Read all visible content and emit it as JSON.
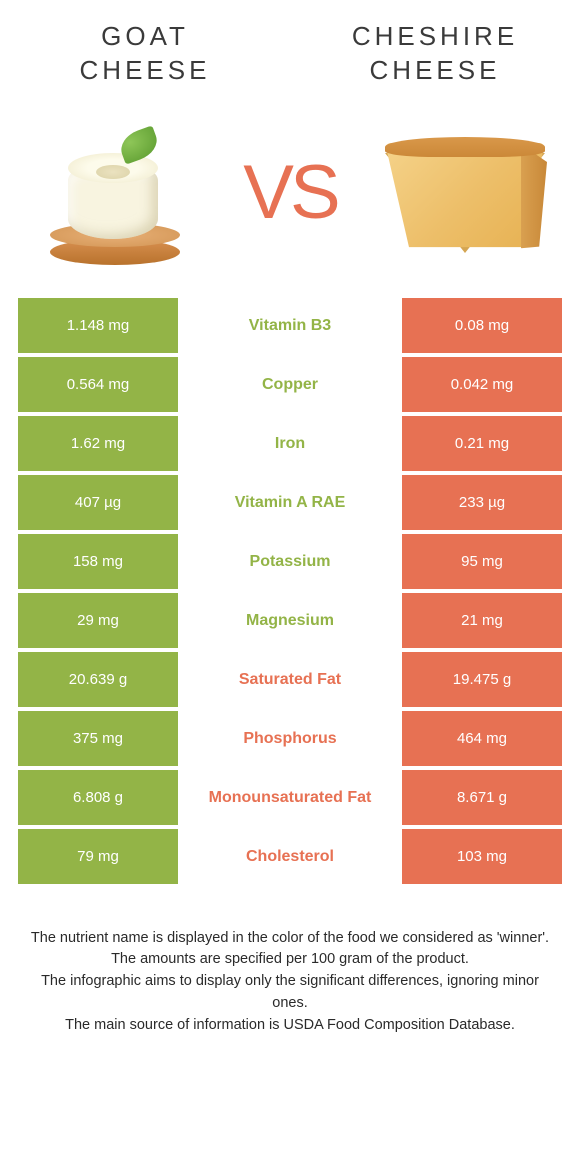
{
  "header": {
    "left_title": "GOAT\nCHEESE",
    "right_title": "CHESHIRE\nCHEESE",
    "vs": "VS"
  },
  "colors": {
    "left": "#93b447",
    "right": "#e77153",
    "background": "#ffffff"
  },
  "rows": [
    {
      "left": "1.148 mg",
      "label": "Vitamin B3",
      "right": "0.08 mg",
      "winner": "left"
    },
    {
      "left": "0.564 mg",
      "label": "Copper",
      "right": "0.042 mg",
      "winner": "left"
    },
    {
      "left": "1.62 mg",
      "label": "Iron",
      "right": "0.21 mg",
      "winner": "left"
    },
    {
      "left": "407 µg",
      "label": "Vitamin A RAE",
      "right": "233 µg",
      "winner": "left"
    },
    {
      "left": "158 mg",
      "label": "Potassium",
      "right": "95 mg",
      "winner": "left"
    },
    {
      "left": "29 mg",
      "label": "Magnesium",
      "right": "21 mg",
      "winner": "left"
    },
    {
      "left": "20.639 g",
      "label": "Saturated Fat",
      "right": "19.475 g",
      "winner": "right"
    },
    {
      "left": "375 mg",
      "label": "Phosphorus",
      "right": "464 mg",
      "winner": "right"
    },
    {
      "left": "6.808 g",
      "label": "Monounsaturated Fat",
      "right": "8.671 g",
      "winner": "right"
    },
    {
      "left": "79 mg",
      "label": "Cholesterol",
      "right": "103 mg",
      "winner": "right"
    }
  ],
  "footer": {
    "line1": "The nutrient name is displayed in the color of the food we considered as 'winner'.",
    "line2": "The amounts are specified per 100 gram of the product.",
    "line3": "The infographic aims to display only the significant differences, ignoring minor ones.",
    "line4": "The main source of information is USDA Food Composition Database."
  }
}
